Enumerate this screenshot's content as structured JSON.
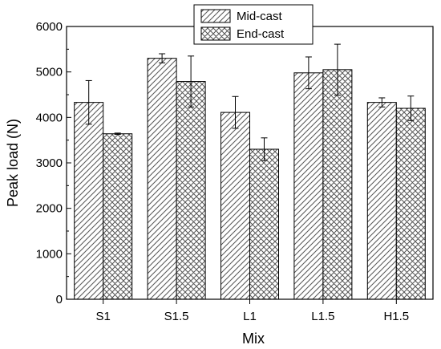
{
  "chart_data": {
    "type": "bar",
    "categories": [
      "S1",
      "S1.5",
      "L1",
      "L1.5",
      "H1.5"
    ],
    "series": [
      {
        "name": "Mid-cast",
        "values": [
          4330,
          5300,
          4110,
          4980,
          4330
        ],
        "errors": [
          480,
          100,
          350,
          350,
          100
        ],
        "pattern": "diagonal-hatch"
      },
      {
        "name": "End-cast",
        "values": [
          3640,
          4790,
          3300,
          5050,
          4200
        ],
        "errors": [
          15,
          560,
          250,
          560,
          270
        ],
        "pattern": "cross-hatch"
      }
    ],
    "title": "",
    "xlabel": "Mix",
    "ylabel": "Peak load (N)",
    "ylim": [
      0,
      6000
    ],
    "yticks": [
      "0",
      "1000",
      "2000",
      "3000",
      "4000",
      "5000",
      "6000"
    ],
    "grid": false,
    "legend_position": "top-center",
    "colors": {
      "bar_fill": "#ffffff",
      "stroke": "#000000",
      "hatch": "#555555"
    }
  }
}
